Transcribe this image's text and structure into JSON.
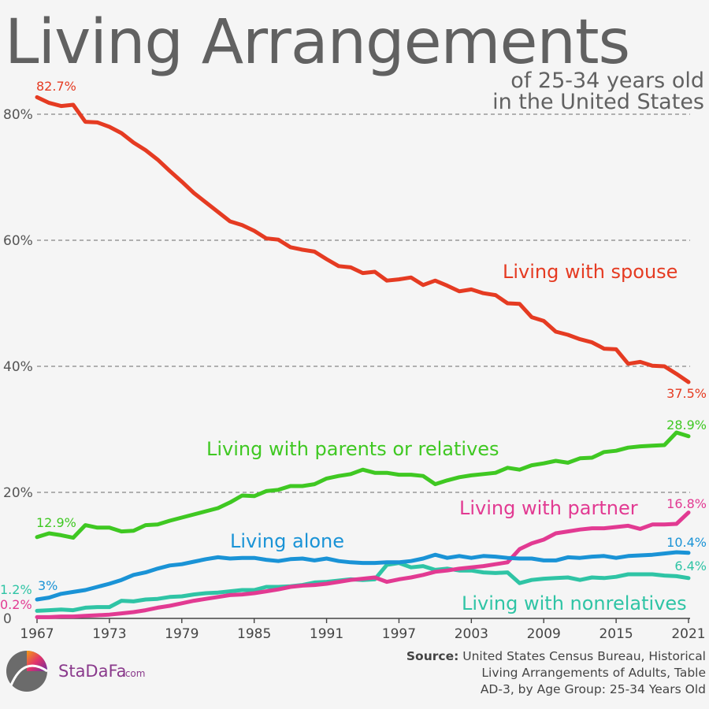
{
  "title": "Living Arrangements",
  "subtitle_line1": "of 25-34 years old",
  "subtitle_line2": "in the United States",
  "source_bold": "Source:",
  "source_line1": "United States Census Bureau, Historical",
  "source_line2": "Living Arrangements of Adults, Table",
  "source_line3": "AD-3, by Age Group: 25-34 Years Old",
  "brand_name": "StaDaFa",
  "brand_domain": ".com",
  "chart_data": {
    "type": "line",
    "xlim": [
      1967,
      2021
    ],
    "ylim": [
      0,
      84
    ],
    "x_ticks": [
      "1967",
      "1973",
      "1979",
      "1985",
      "1991",
      "1997",
      "2003",
      "2009",
      "2015",
      "2021"
    ],
    "y_ticks": [
      {
        "value": 80,
        "label": "80%"
      },
      {
        "value": 60,
        "label": "60%"
      },
      {
        "value": 40,
        "label": "40%"
      },
      {
        "value": 20,
        "label": "20%"
      },
      {
        "value": 0,
        "label": "0"
      }
    ],
    "grid": "dashed horizontal",
    "series": [
      {
        "name": "Living with spouse",
        "color": "#e53b22",
        "start_label": "82.7%",
        "end_label": "37.5%",
        "points": [
          [
            1967,
            82.7
          ],
          [
            1968,
            81.8
          ],
          [
            1969,
            81.3
          ],
          [
            1970,
            81.5
          ],
          [
            1971,
            78.8
          ],
          [
            1972,
            78.7
          ],
          [
            1973,
            78.0
          ],
          [
            1974,
            77.0
          ],
          [
            1975,
            75.5
          ],
          [
            1976,
            74.3
          ],
          [
            1977,
            72.8
          ],
          [
            1978,
            71.0
          ],
          [
            1979,
            69.3
          ],
          [
            1980,
            67.5
          ],
          [
            1981,
            66.0
          ],
          [
            1982,
            64.5
          ],
          [
            1983,
            63.0
          ],
          [
            1984,
            62.4
          ],
          [
            1985,
            61.5
          ],
          [
            1986,
            60.3
          ],
          [
            1987,
            60.1
          ],
          [
            1988,
            58.9
          ],
          [
            1989,
            58.5
          ],
          [
            1990,
            58.2
          ],
          [
            1991,
            57.0
          ],
          [
            1992,
            55.9
          ],
          [
            1993,
            55.7
          ],
          [
            1994,
            54.8
          ],
          [
            1995,
            55.0
          ],
          [
            1996,
            53.6
          ],
          [
            1997,
            53.8
          ],
          [
            1998,
            54.1
          ],
          [
            1999,
            52.9
          ],
          [
            2000,
            53.6
          ],
          [
            2001,
            52.8
          ],
          [
            2002,
            51.9
          ],
          [
            2003,
            52.2
          ],
          [
            2004,
            51.6
          ],
          [
            2005,
            51.3
          ],
          [
            2006,
            50.0
          ],
          [
            2007,
            49.9
          ],
          [
            2008,
            47.8
          ],
          [
            2009,
            47.2
          ],
          [
            2010,
            45.5
          ],
          [
            2011,
            45.0
          ],
          [
            2012,
            44.3
          ],
          [
            2013,
            43.8
          ],
          [
            2014,
            42.8
          ],
          [
            2015,
            42.7
          ],
          [
            2016,
            40.4
          ],
          [
            2017,
            40.7
          ],
          [
            2018,
            40.1
          ],
          [
            2019,
            40.0
          ],
          [
            2020,
            38.8
          ],
          [
            2021,
            37.5
          ]
        ]
      },
      {
        "name": "Living with parents or relatives",
        "color": "#3fc822",
        "start_label": "12.9%",
        "end_label": "28.9%",
        "points": [
          [
            1967,
            12.9
          ],
          [
            1968,
            13.5
          ],
          [
            1969,
            13.2
          ],
          [
            1970,
            12.8
          ],
          [
            1971,
            14.8
          ],
          [
            1972,
            14.4
          ],
          [
            1973,
            14.4
          ],
          [
            1974,
            13.8
          ],
          [
            1975,
            13.9
          ],
          [
            1976,
            14.8
          ],
          [
            1977,
            14.9
          ],
          [
            1978,
            15.5
          ],
          [
            1979,
            16.0
          ],
          [
            1980,
            16.5
          ],
          [
            1981,
            17.0
          ],
          [
            1982,
            17.5
          ],
          [
            1983,
            18.4
          ],
          [
            1984,
            19.5
          ],
          [
            1985,
            19.4
          ],
          [
            1986,
            20.2
          ],
          [
            1987,
            20.4
          ],
          [
            1988,
            21.0
          ],
          [
            1989,
            21.0
          ],
          [
            1990,
            21.3
          ],
          [
            1991,
            22.2
          ],
          [
            1992,
            22.6
          ],
          [
            1993,
            22.9
          ],
          [
            1994,
            23.6
          ],
          [
            1995,
            23.1
          ],
          [
            1996,
            23.1
          ],
          [
            1997,
            22.8
          ],
          [
            1998,
            22.8
          ],
          [
            1999,
            22.6
          ],
          [
            2000,
            21.3
          ],
          [
            2001,
            21.9
          ],
          [
            2002,
            22.4
          ],
          [
            2003,
            22.7
          ],
          [
            2004,
            22.9
          ],
          [
            2005,
            23.1
          ],
          [
            2006,
            23.9
          ],
          [
            2007,
            23.6
          ],
          [
            2008,
            24.3
          ],
          [
            2009,
            24.6
          ],
          [
            2010,
            25.0
          ],
          [
            2011,
            24.7
          ],
          [
            2012,
            25.4
          ],
          [
            2013,
            25.5
          ],
          [
            2014,
            26.4
          ],
          [
            2015,
            26.6
          ],
          [
            2016,
            27.1
          ],
          [
            2017,
            27.3
          ],
          [
            2018,
            27.4
          ],
          [
            2019,
            27.5
          ],
          [
            2020,
            29.5
          ],
          [
            2021,
            28.9
          ]
        ]
      },
      {
        "name": "Living with partner",
        "color": "#e23a92",
        "start_label": "0.2%",
        "end_label": "16.8%",
        "points": [
          [
            1967,
            0.2
          ],
          [
            1968,
            0.2
          ],
          [
            1969,
            0.3
          ],
          [
            1970,
            0.3
          ],
          [
            1971,
            0.4
          ],
          [
            1972,
            0.5
          ],
          [
            1973,
            0.6
          ],
          [
            1974,
            0.8
          ],
          [
            1975,
            1.0
          ],
          [
            1976,
            1.3
          ],
          [
            1977,
            1.7
          ],
          [
            1978,
            2.0
          ],
          [
            1979,
            2.4
          ],
          [
            1980,
            2.8
          ],
          [
            1981,
            3.1
          ],
          [
            1982,
            3.4
          ],
          [
            1983,
            3.7
          ],
          [
            1984,
            3.8
          ],
          [
            1985,
            4.0
          ],
          [
            1986,
            4.3
          ],
          [
            1987,
            4.6
          ],
          [
            1988,
            5.0
          ],
          [
            1989,
            5.2
          ],
          [
            1990,
            5.3
          ],
          [
            1991,
            5.5
          ],
          [
            1992,
            5.8
          ],
          [
            1993,
            6.1
          ],
          [
            1994,
            6.3
          ],
          [
            1995,
            6.5
          ],
          [
            1996,
            5.8
          ],
          [
            1997,
            6.2
          ],
          [
            1998,
            6.5
          ],
          [
            1999,
            6.9
          ],
          [
            2000,
            7.4
          ],
          [
            2001,
            7.6
          ],
          [
            2002,
            7.9
          ],
          [
            2003,
            8.1
          ],
          [
            2004,
            8.3
          ],
          [
            2005,
            8.6
          ],
          [
            2006,
            8.9
          ],
          [
            2007,
            11.0
          ],
          [
            2008,
            11.9
          ],
          [
            2009,
            12.5
          ],
          [
            2010,
            13.5
          ],
          [
            2011,
            13.8
          ],
          [
            2012,
            14.1
          ],
          [
            2013,
            14.3
          ],
          [
            2014,
            14.3
          ],
          [
            2015,
            14.5
          ],
          [
            2016,
            14.7
          ],
          [
            2017,
            14.2
          ],
          [
            2018,
            14.9
          ],
          [
            2019,
            14.9
          ],
          [
            2020,
            15.0
          ],
          [
            2021,
            16.8
          ]
        ]
      },
      {
        "name": "Living alone",
        "color": "#1a93d6",
        "start_label": "3%",
        "end_label": "10.4%",
        "points": [
          [
            1967,
            3.0
          ],
          [
            1968,
            3.3
          ],
          [
            1969,
            3.9
          ],
          [
            1970,
            4.2
          ],
          [
            1971,
            4.5
          ],
          [
            1972,
            5.0
          ],
          [
            1973,
            5.5
          ],
          [
            1974,
            6.1
          ],
          [
            1975,
            6.9
          ],
          [
            1976,
            7.3
          ],
          [
            1977,
            7.9
          ],
          [
            1978,
            8.4
          ],
          [
            1979,
            8.6
          ],
          [
            1980,
            9.0
          ],
          [
            1981,
            9.4
          ],
          [
            1982,
            9.7
          ],
          [
            1983,
            9.5
          ],
          [
            1984,
            9.6
          ],
          [
            1985,
            9.6
          ],
          [
            1986,
            9.3
          ],
          [
            1987,
            9.1
          ],
          [
            1988,
            9.4
          ],
          [
            1989,
            9.5
          ],
          [
            1990,
            9.2
          ],
          [
            1991,
            9.5
          ],
          [
            1992,
            9.1
          ],
          [
            1993,
            8.9
          ],
          [
            1994,
            8.8
          ],
          [
            1995,
            8.8
          ],
          [
            1996,
            8.9
          ],
          [
            1997,
            8.9
          ],
          [
            1998,
            9.1
          ],
          [
            1999,
            9.5
          ],
          [
            2000,
            10.1
          ],
          [
            2001,
            9.6
          ],
          [
            2002,
            9.9
          ],
          [
            2003,
            9.6
          ],
          [
            2004,
            9.9
          ],
          [
            2005,
            9.8
          ],
          [
            2006,
            9.6
          ],
          [
            2007,
            9.5
          ],
          [
            2008,
            9.5
          ],
          [
            2009,
            9.2
          ],
          [
            2010,
            9.2
          ],
          [
            2011,
            9.7
          ],
          [
            2012,
            9.6
          ],
          [
            2013,
            9.8
          ],
          [
            2014,
            9.9
          ],
          [
            2015,
            9.6
          ],
          [
            2016,
            9.9
          ],
          [
            2017,
            10.0
          ],
          [
            2018,
            10.1
          ],
          [
            2019,
            10.3
          ],
          [
            2020,
            10.5
          ],
          [
            2021,
            10.4
          ]
        ]
      },
      {
        "name": "Living with nonrelatives",
        "color": "#2fc4a5",
        "start_label": "1.2%",
        "end_label": "6.4%",
        "points": [
          [
            1967,
            1.2
          ],
          [
            1968,
            1.3
          ],
          [
            1969,
            1.4
          ],
          [
            1970,
            1.3
          ],
          [
            1971,
            1.7
          ],
          [
            1972,
            1.8
          ],
          [
            1973,
            1.8
          ],
          [
            1974,
            2.8
          ],
          [
            1975,
            2.7
          ],
          [
            1976,
            3.0
          ],
          [
            1977,
            3.1
          ],
          [
            1978,
            3.4
          ],
          [
            1979,
            3.5
          ],
          [
            1980,
            3.8
          ],
          [
            1981,
            4.0
          ],
          [
            1982,
            4.1
          ],
          [
            1983,
            4.3
          ],
          [
            1984,
            4.5
          ],
          [
            1985,
            4.5
          ],
          [
            1986,
            5.0
          ],
          [
            1987,
            5.0
          ],
          [
            1988,
            5.1
          ],
          [
            1989,
            5.3
          ],
          [
            1990,
            5.7
          ],
          [
            1991,
            5.8
          ],
          [
            1992,
            6.0
          ],
          [
            1993,
            6.2
          ],
          [
            1994,
            6.1
          ],
          [
            1995,
            6.2
          ],
          [
            1996,
            8.5
          ],
          [
            1997,
            8.8
          ],
          [
            1998,
            8.1
          ],
          [
            1999,
            8.3
          ],
          [
            2000,
            7.7
          ],
          [
            2001,
            7.9
          ],
          [
            2002,
            7.6
          ],
          [
            2003,
            7.6
          ],
          [
            2004,
            7.3
          ],
          [
            2005,
            7.2
          ],
          [
            2006,
            7.3
          ],
          [
            2007,
            5.6
          ],
          [
            2008,
            6.1
          ],
          [
            2009,
            6.3
          ],
          [
            2010,
            6.4
          ],
          [
            2011,
            6.5
          ],
          [
            2012,
            6.1
          ],
          [
            2013,
            6.5
          ],
          [
            2014,
            6.4
          ],
          [
            2015,
            6.6
          ],
          [
            2016,
            7.0
          ],
          [
            2017,
            7.0
          ],
          [
            2018,
            7.0
          ],
          [
            2019,
            6.8
          ],
          [
            2020,
            6.7
          ],
          [
            2021,
            6.4
          ]
        ]
      }
    ]
  }
}
